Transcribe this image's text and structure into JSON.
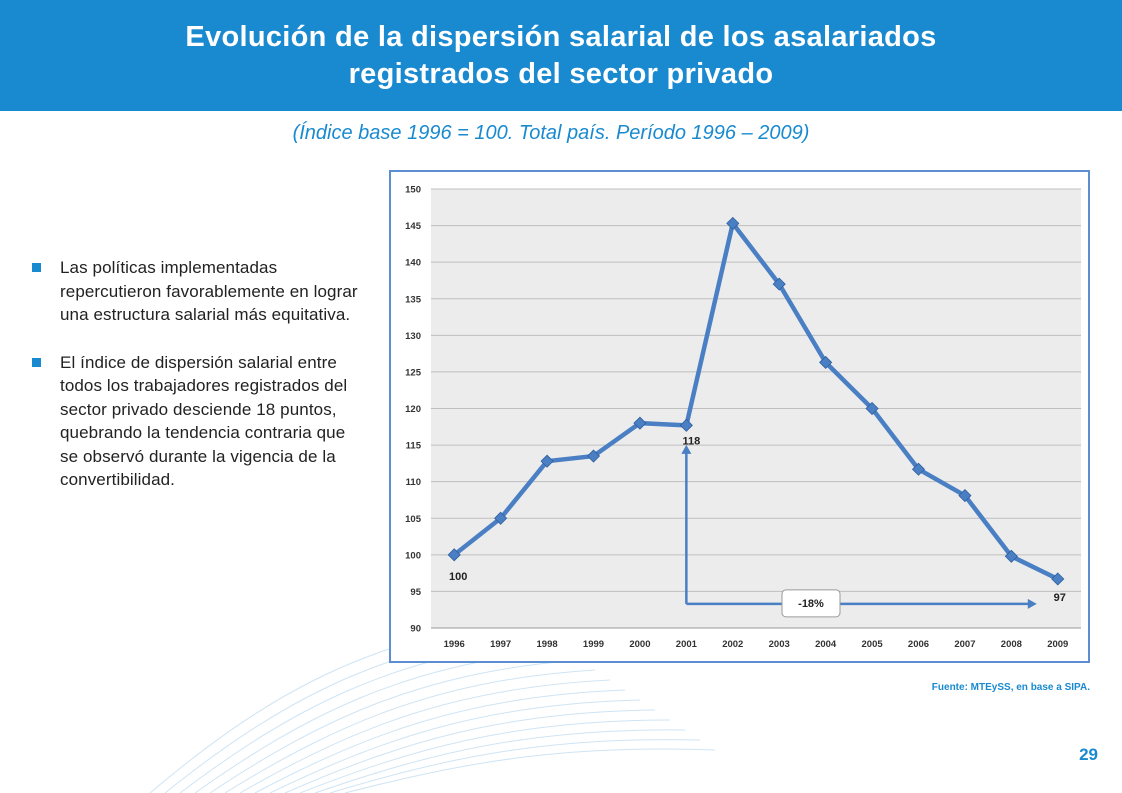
{
  "header": {
    "title_line1": "Evolución de la dispersión salarial de los asalariados",
    "title_line2": "registrados del sector privado"
  },
  "subtitle": "(Índice base 1996 = 100. Total país. Período 1996 – 2009)",
  "bullets": [
    "Las políticas implementadas repercutieron favorablemente en lograr una estructura salarial más equitativa.",
    "El índice de dispersión salarial entre todos los trabajadores registrados del sector privado desciende 18 puntos, quebrando la tendencia contraria que se observó durante la vigencia de la convertibilidad."
  ],
  "source": "Fuente: MTEySS, en base a SIPA.",
  "page_number": "29",
  "colors": {
    "accent": "#1a8ad0",
    "series": "#4a7fc4",
    "plot_bg": "#ececec",
    "frame": "#5b8fd1"
  },
  "chart_data": {
    "type": "line",
    "categories": [
      "1996",
      "1997",
      "1998",
      "1999",
      "2000",
      "2001",
      "2002",
      "2003",
      "2004",
      "2005",
      "2006",
      "2007",
      "2008",
      "2009"
    ],
    "series": [
      {
        "values": [
          100,
          105,
          112.8,
          113.5,
          118,
          117.7,
          145.3,
          137,
          126.3,
          120,
          111.7,
          108.1,
          99.8,
          96.7
        ]
      }
    ],
    "ylim": [
      90,
      150
    ],
    "yticks": [
      90,
      95,
      100,
      105,
      110,
      115,
      120,
      125,
      130,
      135,
      140,
      145,
      150
    ],
    "grid": true,
    "legend": "none",
    "annotations": {
      "label_1996": "100",
      "label_2001": "118",
      "label_2009": "97",
      "change": "-18%"
    }
  }
}
